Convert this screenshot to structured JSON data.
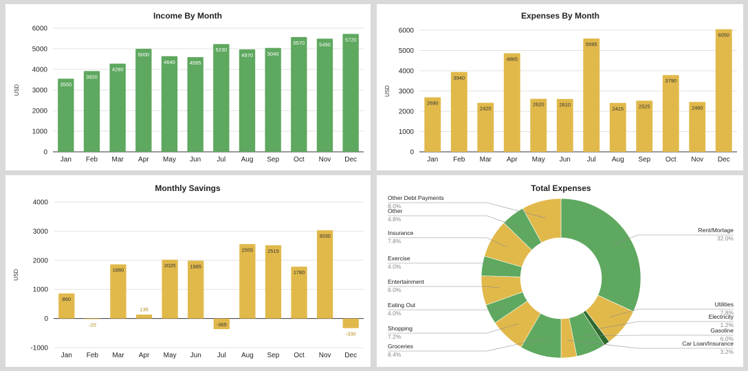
{
  "colors": {
    "green": "#5ea85f",
    "gold": "#e1b94b",
    "dark_green": "#2e6a2f"
  },
  "chart_data": [
    {
      "id": "income",
      "type": "bar",
      "title": "Income By Month",
      "ylabel": "USD",
      "categories": [
        "Jan",
        "Feb",
        "Mar",
        "Apr",
        "May",
        "Jun",
        "Jul",
        "Aug",
        "Sep",
        "Oct",
        "Nov",
        "Dec"
      ],
      "values": [
        3550,
        3920,
        4280,
        5000,
        4640,
        4595,
        5230,
        4970,
        5040,
        5570,
        5490,
        5720
      ],
      "ylim": [
        0,
        6000
      ],
      "yticks": [
        0,
        1000,
        2000,
        3000,
        4000,
        5000,
        6000
      ],
      "color": "#5ea85f",
      "grid": true
    },
    {
      "id": "expenses",
      "type": "bar",
      "title": "Expenses By Month",
      "ylabel": "USD",
      "categories": [
        "Jan",
        "Feb",
        "Mar",
        "Apr",
        "May",
        "Jun",
        "Jul",
        "Aug",
        "Sep",
        "Oct",
        "Nov",
        "Dec"
      ],
      "values": [
        2690,
        3940,
        2420,
        4865,
        2620,
        2610,
        5595,
        2415,
        2525,
        3790,
        2460,
        6050
      ],
      "ylim": [
        0,
        6000
      ],
      "yticks": [
        0,
        1000,
        2000,
        3000,
        4000,
        5000,
        6000
      ],
      "color": "#e1b94b",
      "grid": true
    },
    {
      "id": "savings",
      "type": "bar",
      "title": "Monthly Savings",
      "ylabel": "USD",
      "categories": [
        "Jan",
        "Feb",
        "Mar",
        "Apr",
        "May",
        "Jun",
        "Jul",
        "Aug",
        "Sep",
        "Oct",
        "Nov",
        "Dec"
      ],
      "values": [
        860,
        -20,
        1860,
        135,
        2020,
        1985,
        -365,
        2555,
        2515,
        1780,
        3030,
        -330
      ],
      "ylim": [
        -1000,
        4000
      ],
      "yticks": [
        -1000,
        0,
        1000,
        2000,
        3000,
        4000
      ],
      "color": "#e1b94b",
      "grid": true
    },
    {
      "id": "total",
      "type": "pie",
      "title": "Total Expenses",
      "donut": true,
      "slices": [
        {
          "label": "Rent/Mortage",
          "pct": "32.0%",
          "value": 32.0,
          "color": "#5ea85f"
        },
        {
          "label": "Utilities",
          "pct": "7.8%",
          "value": 7.8,
          "color": "#e1b94b"
        },
        {
          "label": "Electricity",
          "pct": "1.2%",
          "value": 1.2,
          "color": "#2e6a2f"
        },
        {
          "label": "Gasoline",
          "pct": "6.0%",
          "value": 6.0,
          "color": "#5ea85f"
        },
        {
          "label": "Car Loan/Insurance",
          "pct": "3.2%",
          "value": 3.2,
          "color": "#e1b94b"
        },
        {
          "label": "Groceries",
          "pct": "8.4%",
          "value": 8.4,
          "color": "#5ea85f"
        },
        {
          "label": "Shopping",
          "pct": "7.2%",
          "value": 7.2,
          "color": "#e1b94b"
        },
        {
          "label": "Eating Out",
          "pct": "4.0%",
          "value": 4.0,
          "color": "#5ea85f"
        },
        {
          "label": "Entertainment",
          "pct": "6.0%",
          "value": 6.0,
          "color": "#e1b94b"
        },
        {
          "label": "Exercise",
          "pct": "4.0%",
          "value": 4.0,
          "color": "#5ea85f"
        },
        {
          "label": "Insurance",
          "pct": "7.8%",
          "value": 7.8,
          "color": "#e1b94b"
        },
        {
          "label": "Other",
          "pct": "4.8%",
          "value": 4.8,
          "color": "#5ea85f"
        },
        {
          "label": "Other Debt Payments",
          "pct": "8.0%",
          "value": 8.0,
          "color": "#e1b94b"
        }
      ]
    }
  ]
}
